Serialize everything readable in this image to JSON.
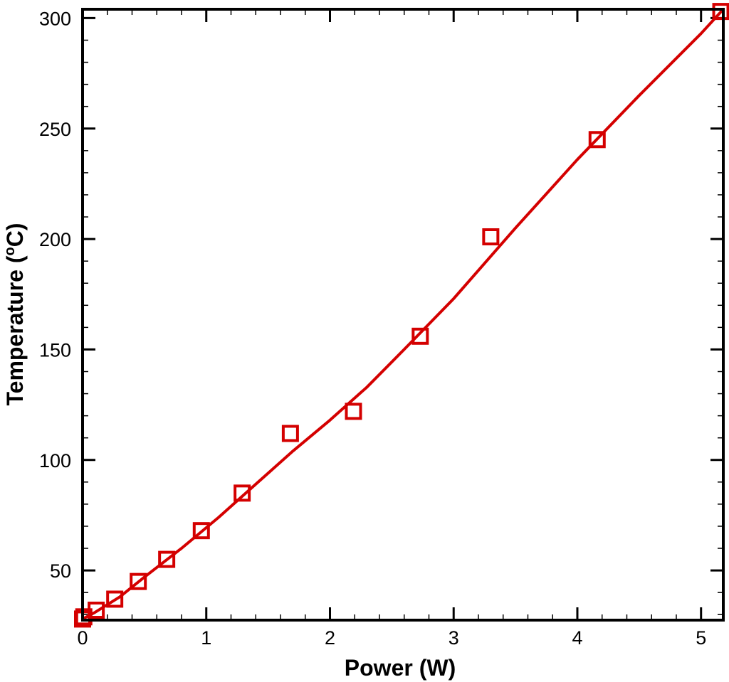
{
  "chart_data": {
    "type": "scatter",
    "title": "",
    "xlabel": "Power (W)",
    "ylabel_prefix": "Temperature (",
    "ylabel_sup": "o",
    "ylabel_suffix": "C)",
    "xlim": [
      0,
      5.18
    ],
    "ylim": [
      27.5,
      304
    ],
    "x_ticks": [
      0,
      1,
      2,
      3,
      4,
      5
    ],
    "x_tick_labels": [
      "0",
      "1",
      "2",
      "3",
      "4",
      "5"
    ],
    "y_ticks": [
      50,
      100,
      150,
      200,
      250,
      300
    ],
    "y_tick_labels": [
      "50",
      "100",
      "150",
      "200",
      "250",
      "300"
    ],
    "grid": false,
    "colors": {
      "series": "#d40000",
      "axes": "#000000"
    },
    "series": [
      {
        "marker": "square",
        "line": "none",
        "x": [
          0.0,
          0.01,
          0.11,
          0.26,
          0.45,
          0.68,
          0.96,
          1.29,
          1.68,
          2.19,
          2.73,
          3.3,
          4.16,
          5.16
        ],
        "y": [
          28,
          29,
          32,
          37,
          45,
          55,
          68,
          85,
          112,
          122,
          156,
          201,
          245,
          303
        ]
      },
      {
        "marker": "none",
        "line": "solid",
        "x": [
          0.0,
          0.1,
          0.3,
          0.5,
          0.8,
          1.1,
          1.4,
          1.7,
          2.0,
          2.3,
          2.6,
          3.0,
          3.5,
          4.0,
          4.5,
          5.0,
          5.18
        ],
        "y": [
          28,
          31,
          38,
          47,
          60,
          74,
          89,
          104,
          118,
          133,
          150,
          173,
          205,
          236,
          265,
          293,
          304
        ]
      }
    ]
  }
}
